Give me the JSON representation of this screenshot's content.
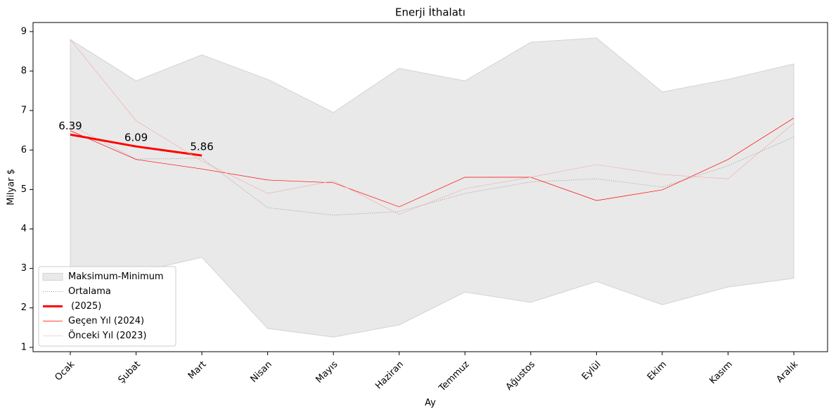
{
  "chart_data": {
    "type": "line",
    "title": "Enerji İthalatı",
    "x_label": "Ay",
    "y_label": "Milyar $",
    "categories": [
      "Ocak",
      "Şubat",
      "Mart",
      "Nisan",
      "Mayıs",
      "Haziran",
      "Temmuz",
      "Ağustos",
      "Eylül",
      "Ekim",
      "Kasım",
      "Aralık"
    ],
    "band": {
      "name": "Maksimum-Minimum",
      "color": "#d3d3d3",
      "upper": [
        8.8,
        7.75,
        8.41,
        7.79,
        6.95,
        8.07,
        7.75,
        8.73,
        8.84,
        7.47,
        7.79,
        8.18
      ],
      "lower": [
        2.7,
        2.9,
        3.28,
        1.48,
        1.26,
        1.57,
        2.4,
        2.14,
        2.67,
        2.08,
        2.53,
        2.75
      ]
    },
    "series": [
      {
        "name": "Ortalama",
        "color": "#999999",
        "width": 1,
        "dash": "dotted",
        "values": [
          6.63,
          5.77,
          5.79,
          4.54,
          4.35,
          4.44,
          4.9,
          5.19,
          5.27,
          5.06,
          5.6,
          6.33
        ]
      },
      {
        "name": " (2025)",
        "color": "#ff0000",
        "width": 3,
        "dash": "solid",
        "show_value_labels": true,
        "values": [
          6.39,
          6.09,
          5.86,
          null,
          null,
          null,
          null,
          null,
          null,
          null,
          null,
          null
        ]
      },
      {
        "name": "Geçen Yıl (2024)",
        "color": "#ff0000",
        "width": 0.7,
        "dash": "solid",
        "values": [
          6.49,
          5.76,
          5.52,
          5.24,
          5.17,
          4.56,
          5.31,
          5.31,
          4.72,
          4.99,
          5.76,
          6.81
        ]
      },
      {
        "name": "Önceki Yıl (2023)",
        "color": "#f4a5a5",
        "width": 0.6,
        "dash": "solid",
        "values": [
          8.8,
          6.74,
          5.72,
          4.9,
          5.22,
          4.37,
          5.02,
          5.31,
          5.63,
          5.38,
          5.27,
          6.68
        ]
      }
    ],
    "ylim": [
      0.89,
      9.23
    ],
    "yticks": [
      1,
      2,
      3,
      4,
      5,
      6,
      7,
      8,
      9
    ],
    "legend": "lower left",
    "grid": false
  }
}
